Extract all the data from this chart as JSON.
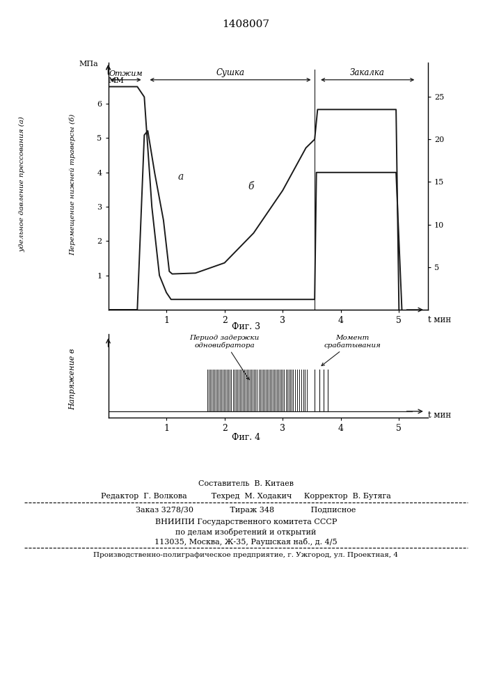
{
  "title": "1408007",
  "fig3_title": "Фиг. 3",
  "fig4_title": "Фиг. 4",
  "fig3_xlabel": "t мин",
  "fig3_left_label": "МПа",
  "fig3_right_label": "ММ",
  "fig4_ylabel": "Напряжение в",
  "fig4_xlabel": "t мин",
  "fig3_ylabel_left": "удельное давление прессования (а)",
  "fig3_ylabel_right": "Перемещение нижней траверсы (б)",
  "otzhim_label": "Отжим",
  "sushka_label": "Сушка",
  "zakalka_label": "Закалка",
  "alpha_label": "а",
  "beta_label": "б",
  "period_label": "Период задержки\nодновибратора",
  "moment_label": "Момент\nсрабатывания",
  "curve_a_x": [
    0.0,
    0.5,
    0.62,
    0.75,
    0.88,
    1.0,
    1.08,
    3.55,
    3.58,
    3.9,
    4.95,
    5.05
  ],
  "curve_a_y": [
    6.5,
    6.5,
    6.2,
    3.0,
    1.0,
    0.5,
    0.3,
    0.3,
    4.0,
    4.0,
    4.0,
    0.0
  ],
  "curve_b_x": [
    0.0,
    0.5,
    0.62,
    0.68,
    0.8,
    0.95,
    1.05,
    1.1,
    1.5,
    2.0,
    2.5,
    3.0,
    3.4,
    3.55,
    3.6,
    4.95,
    5.0
  ],
  "curve_b_y": [
    0.0,
    0.0,
    20.5,
    21.0,
    16.0,
    10.5,
    4.5,
    4.2,
    4.3,
    5.5,
    9.0,
    14.0,
    19.0,
    20.0,
    23.5,
    23.5,
    0.0
  ],
  "left_yticks": [
    1,
    2,
    3,
    4,
    5,
    6
  ],
  "right_yticks": [
    5,
    10,
    15,
    20,
    25
  ],
  "xticks": [
    1,
    2,
    3,
    4,
    5
  ],
  "xlim": [
    0,
    5.5
  ],
  "left_ylim": [
    0,
    7.2
  ],
  "right_ylim": [
    0,
    29
  ],
  "line_color": "#1a1a1a",
  "footer_lines": [
    "Составитель  В. Китаев",
    "Редактор  Г. Волкова          Техред  М. Ходакич     Корректор  В. Бутяга",
    "Заказ 3278/30               Тираж 348               Подписное",
    "ВНИИПИ Государственного комитета СССР",
    "по делам изобретений и открытий",
    "113035, Москва, Ж-35, Раушская наб., д. 4/5",
    "Производственно-полиграфическое предприятие, г. Ужгород, ул. Проектная, 4"
  ]
}
